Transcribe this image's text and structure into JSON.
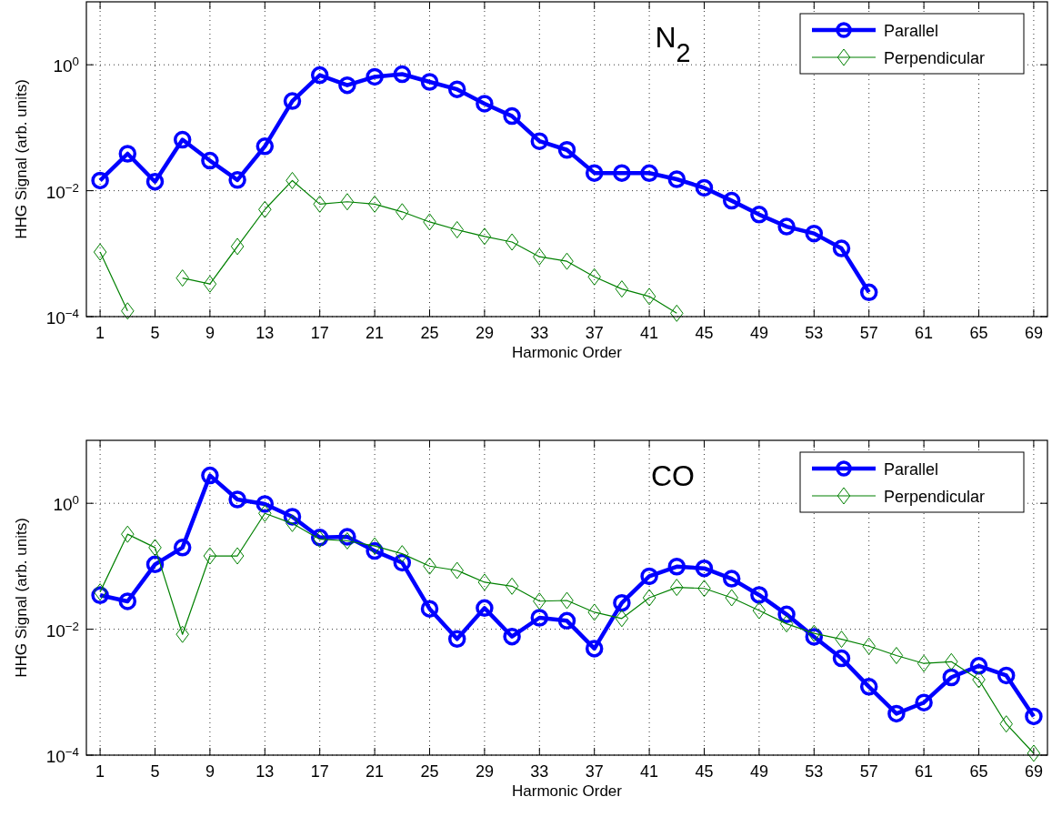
{
  "chart_data": [
    {
      "type": "line",
      "title": "N$_{2}$",
      "xlabel": "Harmonic Order",
      "ylabel": "HHG Signal (arb. units)",
      "xlim": [
        0,
        70
      ],
      "ylim": [
        0.0001,
        10
      ],
      "log": "y",
      "grid": true,
      "legend": "top right",
      "xticks": [
        1,
        5,
        9,
        13,
        17,
        21,
        25,
        29,
        33,
        37,
        41,
        45,
        49,
        53,
        57,
        61,
        65,
        69
      ],
      "yticks": [
        {
          "value": 0.0001,
          "label": "10$^{−4}$"
        },
        {
          "value": 0.01,
          "label": "10$^{−2}$"
        },
        {
          "value": 1,
          "label": "10$^{0}$"
        }
      ],
      "series": [
        {
          "name": "Parallel",
          "color": "#0000ff",
          "marker": "circle",
          "x": [
            1,
            3,
            5,
            7,
            9,
            11,
            13,
            15,
            17,
            19,
            21,
            23,
            25,
            27,
            29,
            31,
            33,
            35,
            37,
            39,
            41,
            43,
            45,
            47,
            49,
            51,
            53,
            55,
            57
          ],
          "values": [
            0.0145,
            0.0386,
            0.0139,
            0.0646,
            0.03,
            0.0148,
            0.0506,
            0.265,
            0.684,
            0.473,
            0.643,
            0.709,
            0.535,
            0.408,
            0.241,
            0.153,
            0.0611,
            0.0445,
            0.0191,
            0.0191,
            0.019,
            0.0152,
            0.0111,
            0.00693,
            0.00418,
            0.00269,
            0.00209,
            0.00121,
            0.000243
          ]
        },
        {
          "name": "Perpendicular",
          "color": "#008000",
          "marker": "diamond",
          "x": [
            1,
            3,
            5,
            7,
            9,
            11,
            13,
            15,
            17,
            19,
            21,
            23,
            25,
            27,
            29,
            31,
            33,
            35,
            37,
            39,
            41,
            43
          ],
          "values": [
            0.00106,
            0.000123,
            null,
            0.00041,
            0.000329,
            0.0013,
            0.00503,
            0.0145,
            0.00612,
            0.00667,
            0.00612,
            0.00462,
            0.00319,
            0.0024,
            0.00188,
            0.00153,
            0.000893,
            0.000757,
            0.000428,
            0.000275,
            0.000209,
            0.000113
          ]
        }
      ]
    },
    {
      "type": "line",
      "title": "CO",
      "xlabel": "Harmonic Order",
      "ylabel": "HHG Signal (arb. units)",
      "xlim": [
        0,
        70
      ],
      "ylim": [
        0.0001,
        10
      ],
      "log": "y",
      "grid": true,
      "legend": "top right",
      "xticks": [
        1,
        5,
        9,
        13,
        17,
        21,
        25,
        29,
        33,
        37,
        41,
        45,
        49,
        53,
        57,
        61,
        65,
        69
      ],
      "yticks": [
        {
          "value": 0.0001,
          "label": "10$^{−4}$"
        },
        {
          "value": 0.01,
          "label": "10$^{−2}$"
        },
        {
          "value": 1,
          "label": "10$^{0}$"
        }
      ],
      "series": [
        {
          "name": "Parallel",
          "color": "#0000ff",
          "marker": "circle",
          "x": [
            1,
            3,
            5,
            7,
            9,
            11,
            13,
            15,
            17,
            19,
            21,
            23,
            25,
            27,
            29,
            31,
            33,
            35,
            37,
            39,
            41,
            43,
            45,
            47,
            49,
            51,
            53,
            55,
            57,
            59,
            61,
            63,
            65,
            67,
            69
          ],
          "values": [
            0.0346,
            0.0277,
            0.107,
            0.198,
            2.77,
            1.15,
            0.975,
            0.612,
            0.286,
            0.293,
            0.175,
            0.114,
            0.0211,
            0.007,
            0.0217,
            0.00764,
            0.0152,
            0.0136,
            0.00492,
            0.0262,
            0.0693,
            0.0988,
            0.0927,
            0.0634,
            0.035,
            0.0172,
            0.00757,
            0.00345,
            0.00122,
            0.000456,
            0.000684,
            0.00172,
            0.00262,
            0.00184,
            0.000412
          ]
        },
        {
          "name": "Perpendicular",
          "color": "#008000",
          "marker": "diamond",
          "x": [
            1,
            3,
            5,
            7,
            9,
            11,
            13,
            15,
            17,
            19,
            21,
            23,
            25,
            27,
            29,
            31,
            33,
            35,
            37,
            39,
            41,
            43,
            45,
            47,
            49,
            51,
            53,
            55,
            57,
            59,
            61,
            63,
            65,
            67,
            69
          ],
          "values": [
            0.0391,
            0.323,
            0.198,
            0.0083,
            0.146,
            0.146,
            0.692,
            0.479,
            0.269,
            0.253,
            0.21,
            0.158,
            0.1006,
            0.0858,
            0.0558,
            0.0482,
            0.0279,
            0.0286,
            0.0186,
            0.0148,
            0.0316,
            0.0462,
            0.0445,
            0.0316,
            0.0198,
            0.0122,
            0.00859,
            0.00693,
            0.00538,
            0.00382,
            0.00286,
            0.00305,
            0.00158,
            0.000313,
            0.000107
          ]
        }
      ]
    }
  ]
}
